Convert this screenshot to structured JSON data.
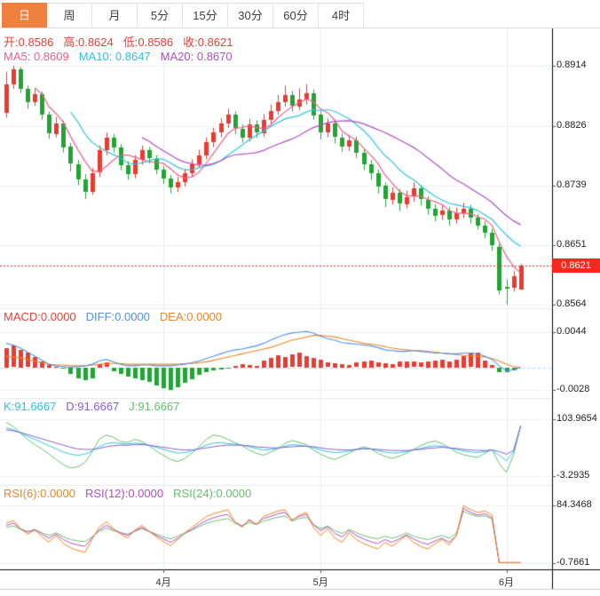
{
  "tabbar": {
    "tabs": [
      {
        "label": "日",
        "active": true
      },
      {
        "label": "周",
        "active": false
      },
      {
        "label": "月",
        "active": false
      },
      {
        "label": "5分",
        "active": false
      },
      {
        "label": "15分",
        "active": false
      },
      {
        "label": "30分",
        "active": false
      },
      {
        "label": "60分",
        "active": false
      },
      {
        "label": "4时",
        "active": false
      }
    ]
  },
  "legends": {
    "ohlc": {
      "color": "#ef3e34",
      "items": [
        {
          "text": "开:0.8586"
        },
        {
          "text": "高:0.8624"
        },
        {
          "text": "低:0.8586"
        },
        {
          "text": "收:0.8621"
        }
      ]
    },
    "ma": {
      "items": [
        {
          "text": "MA5: 0.8609",
          "color": "#ee5f8a"
        },
        {
          "text": "MA10: 0.8647",
          "color": "#2fc3dd"
        },
        {
          "text": "MA20: 0.8670",
          "color": "#b04fc4"
        }
      ]
    },
    "macd": {
      "items": [
        {
          "text": "MACD:0.0000",
          "color": "#ef3e34"
        },
        {
          "text": "DIFF:0.0000",
          "color": "#4e94ea"
        },
        {
          "text": "DEA:0.0000",
          "color": "#f5831f"
        }
      ]
    },
    "kdj": {
      "items": [
        {
          "text": "K:91.6667",
          "color": "#2fc3dd"
        },
        {
          "text": "D:91.6667",
          "color": "#8a5fd0"
        },
        {
          "text": "J:91.6667",
          "color": "#67c06d"
        }
      ]
    },
    "rsi": {
      "items": [
        {
          "text": "RSI(6):0.0000",
          "color": "#f5831f"
        },
        {
          "text": "RSI(12):0.0000",
          "color": "#b04fc4"
        },
        {
          "text": "RSI(24):0.0000",
          "color": "#67c06d"
        }
      ]
    }
  },
  "price_badge": {
    "text": "0.8621",
    "bg": "#f5291d"
  },
  "colors": {
    "up": "#e83b31",
    "down": "#23a335",
    "ma5": "#ee5f8a",
    "ma10": "#2fc3dd",
    "ma20": "#b04fc4",
    "diff": "#4e94ea",
    "dea": "#f5831f",
    "k": "#2fc3dd",
    "d": "#8a5fd0",
    "j": "#67c06d",
    "rsi6": "#f5831f",
    "rsi12": "#b04fc4",
    "rsi24": "#67c06d",
    "grid": "#edf1f5",
    "vgrid": "#e9e9f0",
    "separator": "#e8e8e8",
    "zero_dash": "#a6d9ec",
    "axis_line": "#000000",
    "sub_line": "#cccccc",
    "tick": "#555555",
    "price_line": "#f5291d"
  },
  "chart_data": {
    "type": "candlestick",
    "title": "",
    "interval_selected": "日",
    "last": {
      "open": 0.8586,
      "high": 0.8624,
      "low": 0.8586,
      "close": 0.8621,
      "ma5": 0.8609,
      "ma10": 0.8647,
      "ma20": 0.867
    },
    "last_price": 0.8621,
    "price_axis_ticks": [
      0.8914,
      0.8826,
      0.8739,
      0.8651,
      0.8564
    ],
    "months": [
      {
        "label": "4月",
        "index": 22
      },
      {
        "label": "5月",
        "index": 44
      },
      {
        "label": "6月",
        "index": 70
      }
    ],
    "candles": [
      [
        0.8845,
        0.8905,
        0.8838,
        0.8887
      ],
      [
        0.8887,
        0.8914,
        0.888,
        0.8909
      ],
      [
        0.8909,
        0.8912,
        0.8874,
        0.888
      ],
      [
        0.888,
        0.8885,
        0.8851,
        0.886
      ],
      [
        0.886,
        0.8881,
        0.8855,
        0.8872
      ],
      [
        0.8872,
        0.8876,
        0.8835,
        0.8842
      ],
      [
        0.8842,
        0.8847,
        0.8807,
        0.8815
      ],
      [
        0.8815,
        0.8839,
        0.8809,
        0.883
      ],
      [
        0.883,
        0.8834,
        0.8787,
        0.8795
      ],
      [
        0.8795,
        0.8801,
        0.8759,
        0.877
      ],
      [
        0.877,
        0.8776,
        0.8739,
        0.8748
      ],
      [
        0.8748,
        0.8755,
        0.8719,
        0.873
      ],
      [
        0.873,
        0.8764,
        0.8725,
        0.8757
      ],
      [
        0.8757,
        0.8797,
        0.8751,
        0.879
      ],
      [
        0.879,
        0.8816,
        0.8783,
        0.8808
      ],
      [
        0.8808,
        0.8814,
        0.8787,
        0.8794
      ],
      [
        0.8794,
        0.8799,
        0.8761,
        0.8768
      ],
      [
        0.8768,
        0.8774,
        0.8747,
        0.8755
      ],
      [
        0.8755,
        0.8783,
        0.8749,
        0.8776
      ],
      [
        0.8776,
        0.8797,
        0.8769,
        0.879
      ],
      [
        0.879,
        0.8795,
        0.8771,
        0.8778
      ],
      [
        0.8778,
        0.8783,
        0.8755,
        0.8762
      ],
      [
        0.8762,
        0.8767,
        0.8741,
        0.8749
      ],
      [
        0.8749,
        0.8754,
        0.8727,
        0.8736
      ],
      [
        0.8736,
        0.8751,
        0.8729,
        0.8744
      ],
      [
        0.8744,
        0.8763,
        0.8737,
        0.8757
      ],
      [
        0.8757,
        0.8777,
        0.8751,
        0.877
      ],
      [
        0.877,
        0.8791,
        0.8764,
        0.8783
      ],
      [
        0.8783,
        0.8809,
        0.8777,
        0.8802
      ],
      [
        0.8802,
        0.8823,
        0.8795,
        0.8816
      ],
      [
        0.8816,
        0.8837,
        0.8809,
        0.8829
      ],
      [
        0.8829,
        0.8851,
        0.8823,
        0.8842
      ],
      [
        0.8842,
        0.8847,
        0.8814,
        0.8822
      ],
      [
        0.8822,
        0.8828,
        0.8801,
        0.8809
      ],
      [
        0.8809,
        0.8836,
        0.8803,
        0.8828
      ],
      [
        0.8828,
        0.8834,
        0.8808,
        0.8816
      ],
      [
        0.8816,
        0.8843,
        0.881,
        0.8835
      ],
      [
        0.8835,
        0.8857,
        0.8829,
        0.8848
      ],
      [
        0.8848,
        0.8871,
        0.8842,
        0.8861
      ],
      [
        0.8861,
        0.8885,
        0.8854,
        0.8871
      ],
      [
        0.8871,
        0.8877,
        0.8847,
        0.8855
      ],
      [
        0.8855,
        0.8881,
        0.8849,
        0.8865
      ],
      [
        0.8865,
        0.8887,
        0.8857,
        0.8874
      ],
      [
        0.8874,
        0.8879,
        0.8835,
        0.8842
      ],
      [
        0.8842,
        0.8847,
        0.8806,
        0.8816
      ],
      [
        0.8816,
        0.8837,
        0.8809,
        0.8829
      ],
      [
        0.8829,
        0.8835,
        0.88,
        0.8809
      ],
      [
        0.8809,
        0.8815,
        0.8788,
        0.8796
      ],
      [
        0.8796,
        0.8813,
        0.8789,
        0.8805
      ],
      [
        0.8805,
        0.881,
        0.8779,
        0.8787
      ],
      [
        0.8787,
        0.8793,
        0.8761,
        0.877
      ],
      [
        0.877,
        0.8776,
        0.8747,
        0.8757
      ],
      [
        0.8757,
        0.8762,
        0.8727,
        0.8738
      ],
      [
        0.8738,
        0.8743,
        0.8707,
        0.8718
      ],
      [
        0.8718,
        0.8736,
        0.8711,
        0.8728
      ],
      [
        0.8728,
        0.8733,
        0.8701,
        0.8712
      ],
      [
        0.8712,
        0.8731,
        0.8705,
        0.8722
      ],
      [
        0.8722,
        0.8743,
        0.8715,
        0.8734
      ],
      [
        0.8734,
        0.8739,
        0.8709,
        0.8718
      ],
      [
        0.8718,
        0.8723,
        0.8696,
        0.8705
      ],
      [
        0.8705,
        0.8711,
        0.8686,
        0.8695
      ],
      [
        0.8695,
        0.871,
        0.8688,
        0.8702
      ],
      [
        0.8702,
        0.8707,
        0.868,
        0.8689
      ],
      [
        0.8689,
        0.8706,
        0.8683,
        0.8698
      ],
      [
        0.8698,
        0.8713,
        0.8691,
        0.8705
      ],
      [
        0.8705,
        0.871,
        0.8683,
        0.8692
      ],
      [
        0.8692,
        0.8697,
        0.8674,
        0.868
      ],
      [
        0.868,
        0.8686,
        0.8661,
        0.867
      ],
      [
        0.867,
        0.8675,
        0.8643,
        0.8652
      ],
      [
        0.8649,
        0.8653,
        0.8579,
        0.8585
      ],
      [
        0.859,
        0.8601,
        0.8564,
        0.8588
      ],
      [
        0.8588,
        0.8613,
        0.8583,
        0.8605
      ],
      [
        0.8586,
        0.8624,
        0.8586,
        0.8621
      ]
    ],
    "ma_periods": [
      5,
      10,
      20
    ],
    "macd": {
      "current": {
        "macd": 0.0,
        "diff": 0.0,
        "dea": 0.0
      },
      "axis_ticks": [
        0.0044,
        -0.0028
      ],
      "hist": [
        0.0024,
        0.0027,
        0.0022,
        0.0018,
        0.0013,
        0.0008,
        0.0003,
        0.0001,
        -0.0001,
        -0.0008,
        -0.0013,
        -0.0015,
        -0.0013,
        0.0004,
        0.0006,
        -0.0004,
        -0.0008,
        -0.0011,
        -0.0013,
        -0.0015,
        -0.0018,
        -0.0022,
        -0.0026,
        -0.0028,
        -0.0024,
        -0.0019,
        -0.0014,
        -0.0009,
        -0.0005,
        -0.0003,
        -0.0002,
        -0.0001,
        0.0002,
        0.0004,
        0.0003,
        0.0002,
        0.0009,
        0.0012,
        0.0015,
        0.0013,
        0.0016,
        0.0018,
        0.0014,
        0.0012,
        0.001,
        0.0006,
        0.0005,
        0.0004,
        0.0003,
        0.0006,
        0.0008,
        0.0009,
        0.0006,
        0.0005,
        0.0004,
        0.0007,
        0.0008,
        0.0007,
        0.0006,
        0.0008,
        0.0009,
        0.001,
        0.0008,
        0.001,
        0.0014,
        0.0018,
        0.0019,
        0.0009,
        0.0003,
        -0.0006,
        -0.0005,
        -0.0003,
        0.0
      ],
      "diff": [
        0.003,
        0.0028,
        0.0024,
        0.0019,
        0.0014,
        0.0009,
        0.0004,
        0.0002,
        0.0001,
        0.0,
        0.0001,
        0.0002,
        0.0004,
        0.0008,
        0.001,
        0.0007,
        0.0004,
        0.0002,
        0.0002,
        0.0003,
        0.0003,
        0.0002,
        0.0002,
        0.0002,
        0.0003,
        0.0004,
        0.0006,
        0.0008,
        0.0011,
        0.0014,
        0.0017,
        0.002,
        0.0022,
        0.0023,
        0.0025,
        0.0027,
        0.003,
        0.0034,
        0.0038,
        0.0041,
        0.0043,
        0.0044,
        0.0045,
        0.0043,
        0.0039,
        0.0036,
        0.0034,
        0.0031,
        0.003,
        0.0029,
        0.0028,
        0.0027,
        0.0025,
        0.0022,
        0.0021,
        0.002,
        0.002,
        0.0021,
        0.002,
        0.0019,
        0.0018,
        0.0018,
        0.0017,
        0.0017,
        0.0018,
        0.0018,
        0.0017,
        0.0014,
        0.001,
        0.0002,
        -0.0004,
        -0.0003,
        0.0
      ],
      "dea": [
        0.0014,
        0.0013,
        0.0012,
        0.001,
        0.0008,
        0.0006,
        0.0004,
        0.0003,
        0.0003,
        0.0002,
        0.0002,
        0.0002,
        0.0003,
        0.0004,
        0.0005,
        0.0005,
        0.0005,
        0.0004,
        0.0004,
        0.0004,
        0.0004,
        0.0004,
        0.0004,
        0.0004,
        0.0004,
        0.0005,
        0.0005,
        0.0006,
        0.0007,
        0.0009,
        0.0011,
        0.0013,
        0.0015,
        0.0017,
        0.0019,
        0.0021,
        0.0023,
        0.0025,
        0.0028,
        0.0031,
        0.0034,
        0.0036,
        0.0038,
        0.004,
        0.004,
        0.0039,
        0.0038,
        0.0036,
        0.0034,
        0.0032,
        0.003,
        0.0029,
        0.0028,
        0.0026,
        0.0024,
        0.0023,
        0.0022,
        0.0021,
        0.0021,
        0.002,
        0.0019,
        0.0018,
        0.0017,
        0.0016,
        0.0015,
        0.0015,
        0.0014,
        0.0013,
        0.0011,
        0.0008,
        0.0004,
        0.0001,
        0.0
      ]
    },
    "kdj": {
      "current": {
        "k": 91.6667,
        "d": 91.6667,
        "j": 91.6667
      },
      "axis_ticks": [
        103.9654,
        -3.2935
      ],
      "k": [
        88,
        84,
        78,
        72,
        66,
        60,
        54,
        48,
        42,
        38,
        36,
        38,
        44,
        52,
        58,
        60,
        58,
        57,
        59,
        58,
        55,
        51,
        47,
        43,
        40,
        41,
        44,
        49,
        55,
        59,
        60,
        58,
        57,
        55,
        52,
        49,
        46,
        47,
        49,
        53,
        56,
        55,
        53,
        50,
        46,
        43,
        41,
        42,
        44,
        47,
        49,
        48,
        45,
        42,
        40,
        41,
        43,
        46,
        49,
        52,
        54,
        53,
        50,
        47,
        44,
        42,
        41,
        43,
        46,
        36,
        26,
        42,
        91.6667
      ],
      "d": [
        84,
        82,
        79,
        75,
        71,
        67,
        63,
        59,
        55,
        51,
        48,
        47,
        47,
        49,
        52,
        54,
        55,
        55,
        56,
        56,
        55,
        53,
        51,
        49,
        47,
        46,
        46,
        48,
        50,
        52,
        54,
        55,
        55,
        55,
        54,
        52,
        51,
        50,
        50,
        51,
        52,
        53,
        53,
        52,
        50,
        48,
        47,
        46,
        46,
        47,
        48,
        48,
        47,
        46,
        45,
        45,
        45,
        46,
        47,
        49,
        50,
        51,
        50,
        49,
        47,
        46,
        45,
        45,
        46,
        43,
        38,
        45,
        91.6667
      ],
      "j": [
        98,
        90,
        78,
        66,
        56,
        48,
        38,
        28,
        18,
        12,
        14,
        22,
        42,
        66,
        74,
        70,
        62,
        60,
        66,
        62,
        54,
        44,
        36,
        28,
        24,
        30,
        40,
        52,
        66,
        74,
        72,
        66,
        60,
        54,
        46,
        40,
        36,
        42,
        48,
        58,
        64,
        60,
        56,
        46,
        38,
        32,
        28,
        34,
        40,
        47,
        52,
        48,
        40,
        34,
        30,
        34,
        40,
        47,
        54,
        60,
        63,
        58,
        50,
        42,
        37,
        34,
        32,
        40,
        47,
        20,
        4,
        36,
        91.6667
      ]
    },
    "rsi": {
      "current": {
        "rsi6": 0.0,
        "rsi12": 0.0,
        "rsi24": 0.0
      },
      "axis_ticks": [
        84.3468,
        -0.7661
      ],
      "rsi6": [
        58,
        62,
        50,
        42,
        48,
        38,
        30,
        40,
        28,
        22,
        18,
        15,
        34,
        52,
        60,
        50,
        42,
        36,
        48,
        55,
        46,
        38,
        31,
        25,
        34,
        44,
        52,
        60,
        68,
        72,
        75,
        78,
        60,
        52,
        64,
        56,
        68,
        72,
        76,
        78,
        62,
        70,
        74,
        52,
        40,
        50,
        36,
        30,
        44,
        34,
        28,
        24,
        20,
        30,
        24,
        32,
        40,
        30,
        24,
        20,
        28,
        34,
        26,
        40,
        84,
        78,
        74,
        76,
        70,
        0,
        0,
        0,
        0
      ],
      "rsi12": [
        55,
        58,
        50,
        45,
        49,
        42,
        36,
        42,
        34,
        29,
        26,
        24,
        36,
        48,
        55,
        49,
        44,
        40,
        47,
        52,
        46,
        40,
        35,
        30,
        36,
        43,
        49,
        56,
        62,
        66,
        69,
        71,
        60,
        54,
        62,
        57,
        65,
        68,
        72,
        74,
        63,
        68,
        71,
        56,
        47,
        53,
        43,
        38,
        47,
        40,
        35,
        31,
        28,
        34,
        30,
        35,
        41,
        35,
        30,
        27,
        32,
        36,
        30,
        40,
        80,
        74,
        70,
        72,
        66,
        0,
        0,
        0,
        0
      ],
      "rsi24": [
        52,
        54,
        49,
        46,
        48,
        44,
        40,
        44,
        38,
        34,
        32,
        31,
        38,
        46,
        51,
        47,
        44,
        42,
        46,
        50,
        46,
        42,
        38,
        35,
        39,
        44,
        48,
        53,
        58,
        61,
        63,
        65,
        58,
        54,
        59,
        56,
        61,
        64,
        67,
        69,
        61,
        65,
        67,
        56,
        50,
        54,
        47,
        43,
        49,
        44,
        40,
        37,
        35,
        39,
        36,
        39,
        44,
        39,
        36,
        34,
        37,
        40,
        36,
        43,
        76,
        71,
        68,
        69,
        64,
        0,
        0,
        0,
        0
      ]
    }
  }
}
